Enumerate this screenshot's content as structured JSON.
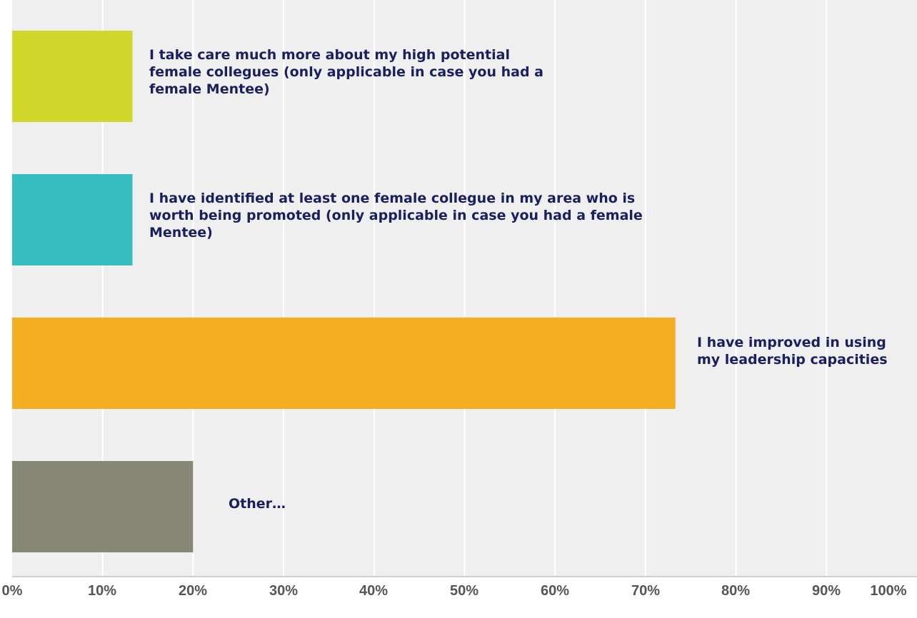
{
  "chart_data": {
    "type": "bar",
    "orientation": "horizontal",
    "categories": [
      "I take care much more about my high potential female collegues (only applicable in case you had a female Mentee)",
      "I have identified at least one female collegue in my area who is worth being promoted (only applicable in case you had a female Mentee)",
      "I have improved in using my leadership capacities",
      "Other…"
    ],
    "values": [
      13.3,
      13.3,
      73.3,
      20
    ],
    "colors": [
      "#d0d62a",
      "#35bdbf",
      "#f5ad22",
      "#888877"
    ],
    "xlim": [
      0,
      100
    ],
    "x_ticks": [
      "0%",
      "10%",
      "20%",
      "30%",
      "40%",
      "50%",
      "60%",
      "70%",
      "80%",
      "90%",
      "100%"
    ],
    "grid": true
  }
}
